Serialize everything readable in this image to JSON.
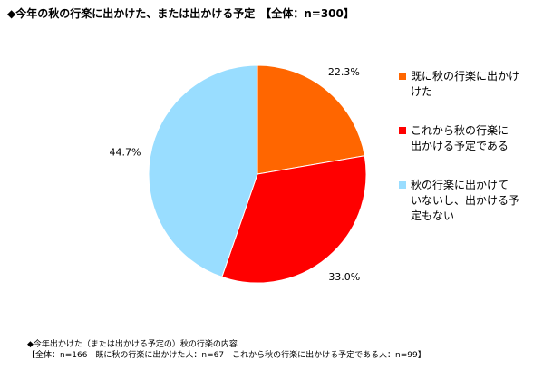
{
  "chart_data": {
    "type": "pie",
    "title": "◆今年の秋の行楽に出かけた、または出かける予定　【全体：n=300】",
    "slices": [
      {
        "label": "既に秋の行楽に出かけた",
        "value": 22.3,
        "value_label": "22.3%",
        "color": "#ff6600"
      },
      {
        "label": "これから秋の行楽に出かける予定である",
        "value": 33.0,
        "value_label": "33.0%",
        "color": "#ff0000"
      },
      {
        "label": "秋の行楽に出かけていないし、出かける予定もない",
        "value": 44.7,
        "value_label": "44.7%",
        "color": "#99ddff"
      }
    ],
    "start_angle_deg": 0,
    "direction": "clockwise",
    "legend_position": "right"
  },
  "legend": [
    {
      "lines": [
        "既に秋の行楽に出かけ",
        "けた"
      ]
    },
    {
      "lines": [
        "これから秋の行楽に",
        "出かける予定である"
      ]
    },
    {
      "lines": [
        "秋の行楽に出かけて",
        "いないし、出かける予",
        "定もない"
      ]
    }
  ],
  "footnote": {
    "line1": "◆今年出かけた（または出かける予定の）秋の行楽の内容",
    "line2": "【全体：n=166　既に秋の行楽に出かけた人：n=67　これから秋の行楽に出かける予定である人：n=99】"
  }
}
